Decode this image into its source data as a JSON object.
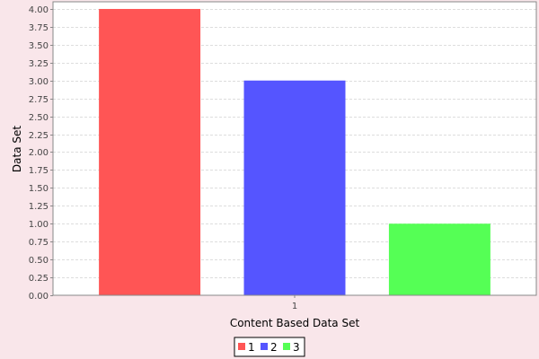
{
  "chart_data": {
    "type": "bar",
    "categories": [
      "1"
    ],
    "series": [
      {
        "name": "1",
        "values": [
          4.0
        ],
        "color": "#ff5555"
      },
      {
        "name": "2",
        "values": [
          3.0
        ],
        "color": "#5555ff"
      },
      {
        "name": "3",
        "values": [
          1.0
        ],
        "color": "#55ff55"
      }
    ],
    "title": "",
    "xlabel": "Content Based Data Set",
    "ylabel": "Data Set",
    "ylim": [
      0,
      4.1
    ],
    "yticks": [
      "0.00",
      "0.25",
      "0.50",
      "0.75",
      "1.00",
      "1.25",
      "1.50",
      "1.75",
      "2.00",
      "2.25",
      "2.50",
      "2.75",
      "3.00",
      "3.25",
      "3.50",
      "3.75",
      "4.00"
    ],
    "grid": true,
    "legend_position": "bottom"
  }
}
